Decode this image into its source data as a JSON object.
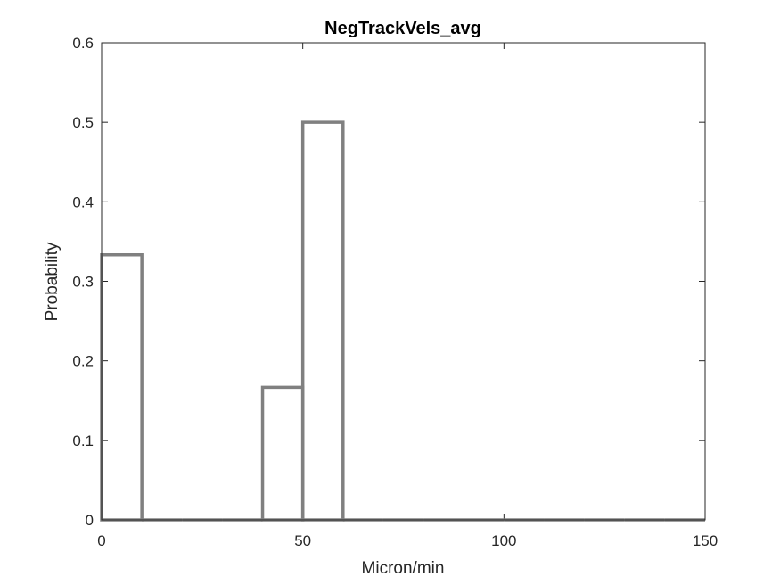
{
  "chart_data": {
    "type": "histogram",
    "title": "NegTrackVels_avg",
    "xlabel": "Micron/min",
    "ylabel": "Probability",
    "xlim": [
      0,
      150
    ],
    "ylim": [
      0,
      0.6
    ],
    "xticks": [
      "0",
      "50",
      "100",
      "150"
    ],
    "yticks": [
      "0",
      "0.1",
      "0.2",
      "0.3",
      "0.4",
      "0.5",
      "0.6"
    ],
    "bin_edges": [
      0,
      10,
      20,
      30,
      40,
      50,
      60,
      70,
      80,
      90,
      100,
      110,
      120,
      130,
      140,
      150
    ],
    "values": [
      0.3333,
      0,
      0,
      0,
      0.1667,
      0.5,
      0,
      0,
      0,
      0,
      0,
      0,
      0,
      0,
      0
    ],
    "style": "stairs",
    "line_color": "#808080",
    "grid": false
  }
}
